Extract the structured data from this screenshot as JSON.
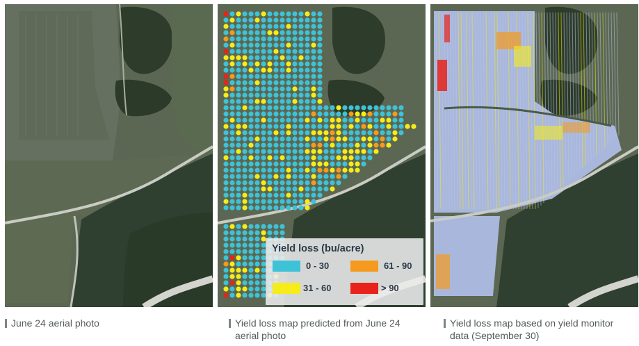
{
  "panels": [
    {
      "caption": "June 24 aerial photo"
    },
    {
      "caption": "Yield loss map predicted from June 24 aerial photo"
    },
    {
      "caption": "Yield loss map based on yield monitor data (September 30)"
    }
  ],
  "legend": {
    "title": "Yield loss (bu/acre)",
    "items": [
      {
        "label": "0 - 30",
        "color": "#3ec2d8"
      },
      {
        "label": "61 - 90",
        "color": "#f59a1e"
      },
      {
        "label": "31 - 60",
        "color": "#f5ec1a"
      },
      {
        "label": "> 90",
        "color": "#e8231c"
      }
    ]
  },
  "colors": {
    "field": "#5c6a56",
    "forest": "#2d3d2a",
    "road": "#c9ccc4",
    "low_yield_loss": "#a9b7dd"
  }
}
